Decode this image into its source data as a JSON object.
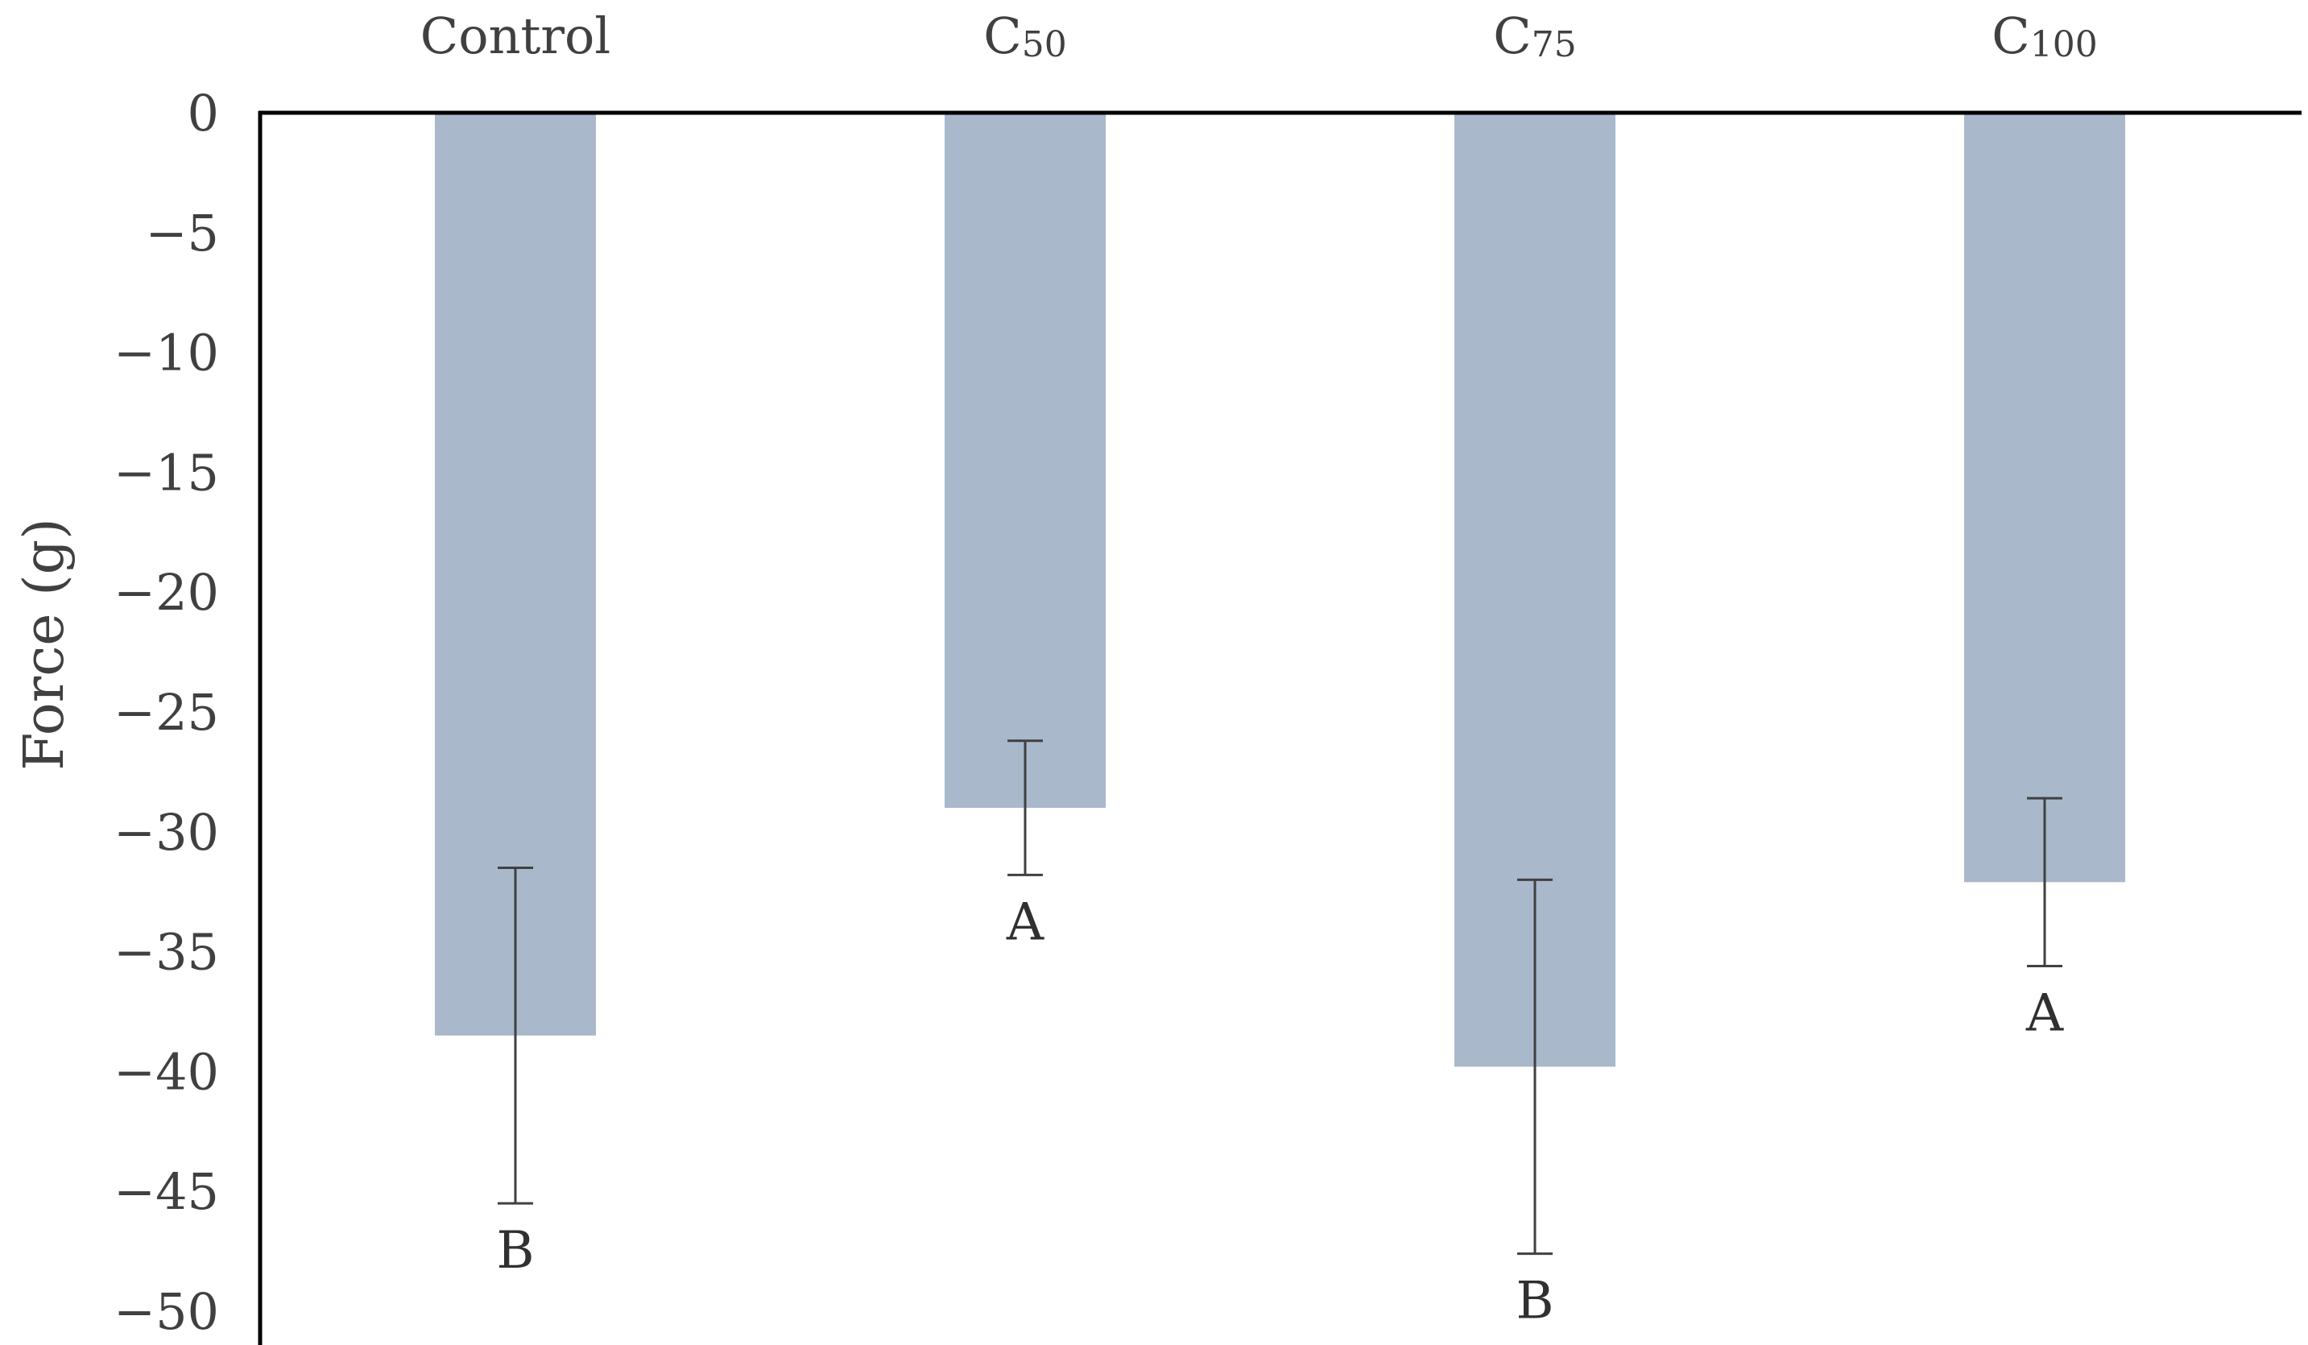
{
  "chart_data": {
    "type": "bar",
    "categories": [
      {
        "base": "Control",
        "sub": ""
      },
      {
        "base": "C",
        "sub": "50"
      },
      {
        "base": "C",
        "sub": "75"
      },
      {
        "base": "C",
        "sub": "100"
      }
    ],
    "values": [
      -38.5,
      -29.0,
      -39.8,
      -32.1
    ],
    "error": [
      7.0,
      2.8,
      7.8,
      3.5
    ],
    "significance": [
      "B",
      "A",
      "B",
      "A"
    ],
    "ylabel": "Force (g)",
    "ylim": [
      -50,
      0
    ],
    "yticks": [
      0,
      -5,
      -10,
      -15,
      -20,
      -25,
      -30,
      -35,
      -40,
      -45,
      -50
    ],
    "grid": false,
    "legend": "none",
    "colors": {
      "bar": "#a9b8cb",
      "axis": "#000000",
      "error_bar": "#404040",
      "text": "#404040"
    }
  }
}
